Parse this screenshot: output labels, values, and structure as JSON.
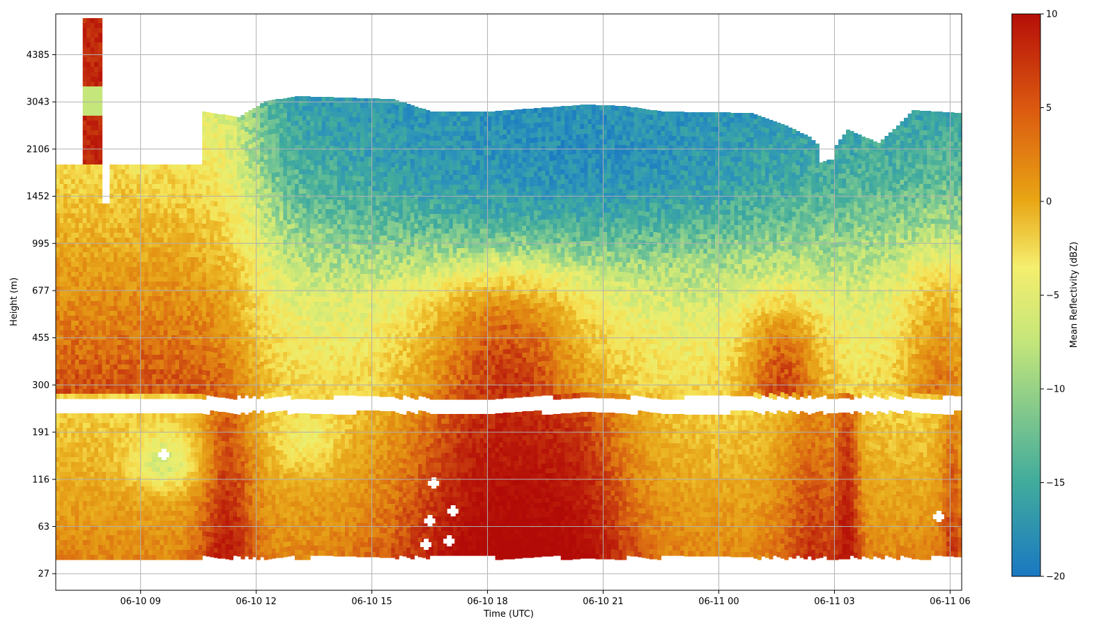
{
  "chart_data": {
    "type": "heatmap",
    "title": "",
    "xlabel": "Time (UTC)",
    "ylabel": "Height (m)",
    "colorbar_label": "Mean Reflectivity (dBZ)",
    "colormap": "blue-green-yellow-orange-red (Spectral reversed)",
    "color_range": [
      -20,
      10
    ],
    "colorbar_ticks": [
      "−20",
      "−15",
      "−10",
      "−5",
      "0",
      "5",
      "10"
    ],
    "colorbar_tick_values": [
      -20,
      -15,
      -10,
      -5,
      0,
      5,
      10
    ],
    "x_range_hours": [
      6.8,
      30.3
    ],
    "x_tick_labels": [
      "06-10 09",
      "06-10 12",
      "06-10 15",
      "06-10 18",
      "06-10 21",
      "06-11 00",
      "06-11 03",
      "06-11 06"
    ],
    "x_tick_hours": [
      9,
      12,
      15,
      18,
      21,
      24,
      27,
      30
    ],
    "y_tick_labels": [
      "27",
      "63",
      "116",
      "191",
      "300",
      "455",
      "677",
      "995",
      "1452",
      "2106",
      "3043",
      "4385"
    ],
    "y_tick_values": [
      27,
      63,
      116,
      191,
      300,
      455,
      677,
      995,
      1452,
      2106,
      3043,
      4385
    ],
    "grid": true,
    "colors": {
      "min": "#1a78c2",
      "low": "#42ac9c",
      "mid": "#f5ee6e",
      "high": "#e67e1a",
      "max": "#b50f08"
    }
  }
}
